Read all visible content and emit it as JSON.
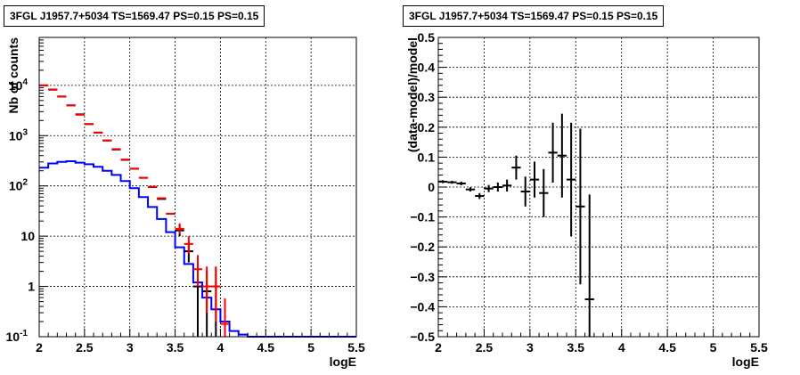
{
  "chart_data": [
    {
      "type": "line",
      "title": "3FGL J1957.7+5034 TS=1569.47 PS=0.15 PS=0.15",
      "xlabel": "logE",
      "ylabel": "Nb of counts",
      "xlim": [
        2,
        5.5
      ],
      "ylim": [
        0.1,
        90000
      ],
      "yscale": "log",
      "grid": true,
      "x_ticks": [
        "2",
        "2.5",
        "3",
        "3.5",
        "4",
        "4.5",
        "5",
        "5.5"
      ],
      "y_ticks": [
        {
          "value": 0.1,
          "label": "10",
          "exp": "-1"
        },
        {
          "value": 1,
          "label": "1",
          "exp": ""
        },
        {
          "value": 10,
          "label": "10",
          "exp": ""
        },
        {
          "value": 100,
          "label": "10",
          "exp": "2"
        },
        {
          "value": 1000,
          "label": "10",
          "exp": "3"
        },
        {
          "value": 10000,
          "label": "10",
          "exp": "4"
        }
      ],
      "series": [
        {
          "color": "#000000",
          "style": "points",
          "x": [
            2.05,
            2.15,
            2.25,
            2.35,
            2.45,
            2.55,
            2.65,
            2.75,
            2.85,
            2.95,
            3.05,
            3.15,
            3.25,
            3.35,
            3.45,
            3.55,
            3.65,
            3.75,
            3.85,
            3.95
          ],
          "xerr": 0.05,
          "y": [
            10000,
            8200,
            6000,
            4000,
            2650,
            1700,
            1150,
            800,
            530,
            330,
            220,
            145,
            95,
            55,
            28,
            13,
            5,
            1,
            0.8,
            1
          ],
          "yerr_low": [
            0,
            0,
            0,
            0,
            0,
            0,
            0,
            0,
            0,
            0,
            0,
            0,
            0,
            0,
            0,
            3,
            2,
            0.9,
            0.8,
            0.9
          ],
          "yerr_high": [
            0,
            0,
            0,
            0,
            0,
            0,
            0,
            0,
            0,
            0,
            0,
            0,
            0,
            0,
            0,
            4,
            2.5,
            1.3,
            1.2,
            1.3
          ]
        },
        {
          "color": "#ff0000",
          "style": "points",
          "x": [
            2.05,
            2.15,
            2.25,
            2.35,
            2.45,
            2.55,
            2.65,
            2.75,
            2.85,
            2.95,
            3.05,
            3.15,
            3.25,
            3.35,
            3.45,
            3.55,
            3.65,
            3.75,
            3.85,
            3.95,
            4.05
          ],
          "xerr": 0.05,
          "y": [
            10000,
            8300,
            6000,
            4000,
            2600,
            1700,
            1150,
            800,
            540,
            335,
            220,
            145,
            96,
            57,
            28,
            14,
            7,
            2.2,
            1,
            1,
            0.18
          ],
          "yerr_low": [
            0,
            0,
            0,
            0,
            0,
            0,
            0,
            0,
            0,
            0,
            0,
            0,
            0,
            0,
            0,
            3,
            2.5,
            1.2,
            0.7,
            0.8,
            0.15
          ],
          "yerr_high": [
            0,
            0,
            0,
            0,
            0,
            0,
            0,
            0,
            0,
            0,
            0,
            0,
            0,
            0,
            0,
            4,
            3,
            2,
            1.5,
            1.5,
            0.4
          ]
        },
        {
          "color": "#0000ff",
          "style": "step",
          "x": [
            2.05,
            2.15,
            2.25,
            2.35,
            2.45,
            2.55,
            2.65,
            2.75,
            2.85,
            2.95,
            3.05,
            3.15,
            3.25,
            3.35,
            3.45,
            3.55,
            3.65,
            3.75,
            3.85,
            3.95,
            4.05,
            4.15,
            4.25,
            4.35,
            4.45,
            4.55,
            4.65,
            4.75,
            4.85,
            4.95,
            5.05,
            5.15,
            5.25,
            5.35,
            5.45
          ],
          "y": [
            230,
            280,
            300,
            310,
            290,
            270,
            240,
            200,
            165,
            125,
            90,
            60,
            38,
            22,
            12,
            6,
            2.8,
            1.2,
            0.6,
            0.35,
            0.2,
            0.13,
            0.11,
            0.1,
            0.1,
            0.1,
            0.1,
            0.1,
            0.1,
            0.1,
            0.1,
            0.1,
            0.1,
            0.1,
            0.1
          ]
        }
      ]
    },
    {
      "type": "scatter",
      "title": "3FGL J1957.7+5034 TS=1569.47 PS=0.15 PS=0.15",
      "xlabel": "logE",
      "ylabel": "(data-model)/model",
      "xlim": [
        2,
        5.5
      ],
      "ylim": [
        -0.5,
        0.5
      ],
      "grid": true,
      "x_ticks": [
        "2",
        "2.5",
        "3",
        "3.5",
        "4",
        "4.5",
        "5",
        "5.5"
      ],
      "y_ticks": [
        "−0.5",
        "−0.4",
        "−0.3",
        "−0.2",
        "−0.1",
        "0",
        "0.1",
        "0.2",
        "0.3",
        "0.4",
        "0.5"
      ],
      "series": [
        {
          "color": "#000000",
          "x": [
            2.05,
            2.15,
            2.25,
            2.35,
            2.45,
            2.55,
            2.65,
            2.75,
            2.85,
            2.95,
            3.05,
            3.15,
            3.25,
            3.35,
            3.45,
            3.55,
            3.65
          ],
          "xerr": 0.05,
          "y": [
            0.018,
            0.016,
            0.012,
            -0.008,
            -0.03,
            -0.005,
            0.0,
            0.005,
            0.065,
            -0.015,
            0.025,
            -0.02,
            0.115,
            0.105,
            0.025,
            -0.065,
            -0.375
          ],
          "yerr": [
            0.005,
            0.005,
            0.006,
            0.007,
            0.01,
            0.012,
            0.015,
            0.02,
            0.04,
            0.05,
            0.06,
            0.08,
            0.1,
            0.14,
            0.19,
            0.26,
            0.35
          ]
        }
      ]
    }
  ]
}
